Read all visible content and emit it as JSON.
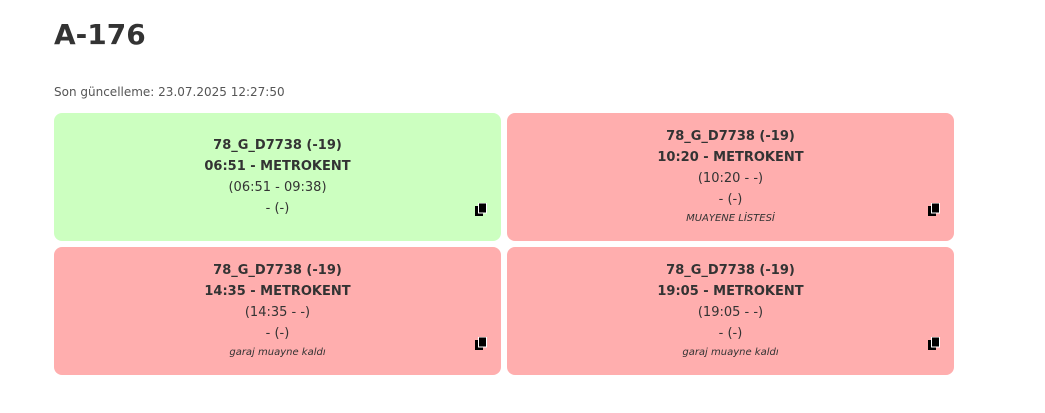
{
  "header": {
    "title": "A-176",
    "last_update": "Son güncelleme: 23.07.2025 12:27:50"
  },
  "cards": [
    {
      "vehicle": "78_G_D7738 (-19)",
      "trip": "06:51 - METROKENT",
      "times": "(06:51 - 09:38)",
      "status": "- (-)",
      "note": null,
      "state": "ok"
    },
    {
      "vehicle": "78_G_D7738 (-19)",
      "trip": "10:20 - METROKENT",
      "times": "(10:20 - -)",
      "status": "- (-)",
      "note": "MUAYENE LİSTESİ",
      "state": "bad"
    },
    {
      "vehicle": "78_G_D7738 (-19)",
      "trip": "14:35 - METROKENT",
      "times": "(14:35 - -)",
      "status": "- (-)",
      "note": "garaj muayne kaldı",
      "state": "bad"
    },
    {
      "vehicle": "78_G_D7738 (-19)",
      "trip": "19:05 - METROKENT",
      "times": "(19:05 - -)",
      "status": "- (-)",
      "note": "garaj muayne kaldı",
      "state": "bad"
    }
  ]
}
